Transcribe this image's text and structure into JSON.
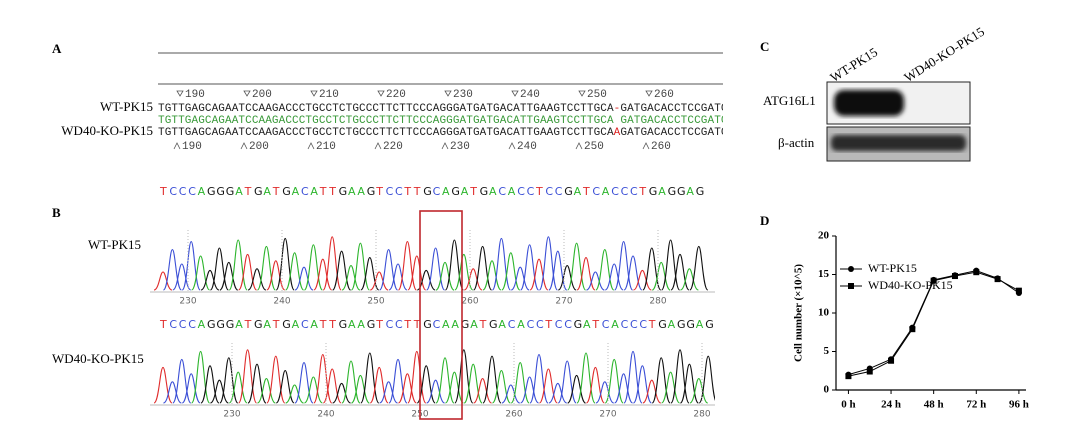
{
  "panel_a": {
    "label": "A",
    "ruler_top": [
      190,
      200,
      210,
      220,
      230,
      240,
      250,
      260
    ],
    "ruler_bottom": [
      190,
      200,
      210,
      220,
      230,
      240,
      250,
      260
    ],
    "rows": [
      {
        "name": "WT-PK15",
        "sequence": "TGTTGAGCAGAATCCAAGACCCTGCCTCTGCCCTTCTTCCCAGGGATGATGACATTGAAGTCCTTGCA-GATGACACCTCCGATC"
      },
      {
        "sequence": "TGTTGAGCAGAATCCAAGACCCTGCCTCTGCCCTTCTTCCCAGGGATGATGACATTGAAGTCCTTGCA GATGACACCTCCGATC"
      },
      {
        "name": "WD40-KO-PK15",
        "sequence": "TGTTGAGCAGAATCCAAGACCCTGCCTCTGCCCTTCTTCCCAGGGATGATGACATTGAAGTCCTTGCAAGATGACACCTCCGATC"
      }
    ]
  },
  "panel_b": {
    "label": "B",
    "traces": [
      {
        "name": "WT-PK15",
        "sequence": "TCCCAGGGATGATGACATTGAAGTCCTTGCAGATGACACCTCCGATCACCCTGAGGAG",
        "ticks": [
          230,
          240,
          250,
          260,
          270,
          280
        ]
      },
      {
        "name": "WD40-KO-PK15",
        "sequence": "TCCCAGGGATGATGACATTGAAGTCCTTGCAAGATGACACCTCCGATCACCCTGAGGAG",
        "ticks": [
          230,
          240,
          250,
          260,
          270,
          280
        ]
      }
    ]
  },
  "panel_c": {
    "label": "C",
    "lanes": [
      "WT-PK15",
      "WD40-KO-PK15"
    ],
    "rows": [
      "ATG16L1",
      "β-actin"
    ]
  },
  "chart_data": {
    "type": "line",
    "panel_label": "D",
    "ylabel": "Cell number (×10^5)",
    "x": [
      0,
      12,
      24,
      36,
      48,
      60,
      72,
      84,
      96
    ],
    "xlim": [
      -7,
      100
    ],
    "xticks": [
      {
        "value": 0,
        "label": "0 h"
      },
      {
        "value": 24,
        "label": "24 h"
      },
      {
        "value": 48,
        "label": "48 h"
      },
      {
        "value": 72,
        "label": "72 h"
      },
      {
        "value": 96,
        "label": "96 h"
      }
    ],
    "ylim": [
      0,
      20
    ],
    "yticks": [
      0,
      5,
      10,
      15,
      20
    ],
    "legend": "upper left",
    "series": [
      {
        "name": "WT-PK15",
        "color": "#000000",
        "marker": "circle",
        "values": [
          2.0,
          2.8,
          4.0,
          8.1,
          14.3,
          14.9,
          15.5,
          14.5,
          12.6
        ]
      },
      {
        "name": "WD40-KO-PK15",
        "color": "#000000",
        "marker": "square",
        "values": [
          1.8,
          2.4,
          3.8,
          7.9,
          14.2,
          14.8,
          15.3,
          14.4,
          12.9
        ]
      }
    ]
  }
}
